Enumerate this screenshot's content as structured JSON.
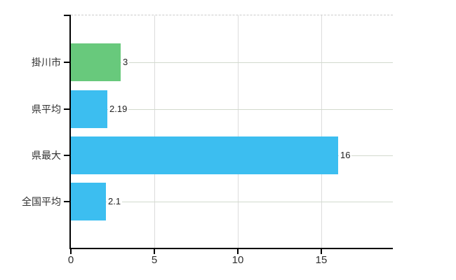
{
  "chart_data": {
    "type": "bar",
    "orientation": "horizontal",
    "title": "",
    "xlabel": "",
    "ylabel": "",
    "categories": [
      "掛川市",
      "県平均",
      "県最大",
      "全国平均"
    ],
    "values": [
      3,
      2.19,
      16,
      2.1
    ],
    "value_labels": [
      "3",
      "2.19",
      "16",
      "2.1"
    ],
    "bar_colors": [
      "#68c97c",
      "#3cbef0",
      "#3cbef0",
      "#3cbef0"
    ],
    "x_ticks": [
      {
        "value": 0,
        "label": "0"
      },
      {
        "value": 5,
        "label": "5"
      },
      {
        "value": 10,
        "label": "10"
      },
      {
        "value": 15,
        "label": "15"
      }
    ],
    "xlim": [
      0,
      19.3
    ],
    "grid": true,
    "legend": false
  },
  "colors": {
    "background": "#ffffff",
    "axis": "#000000",
    "grid_horizontal": "#d2dacd",
    "grid_vertical": "#dcdcdc",
    "plot_top_border": "#cccccc",
    "category_text": "#303030",
    "value_text": "#222222",
    "tick_text": "#303030"
  }
}
